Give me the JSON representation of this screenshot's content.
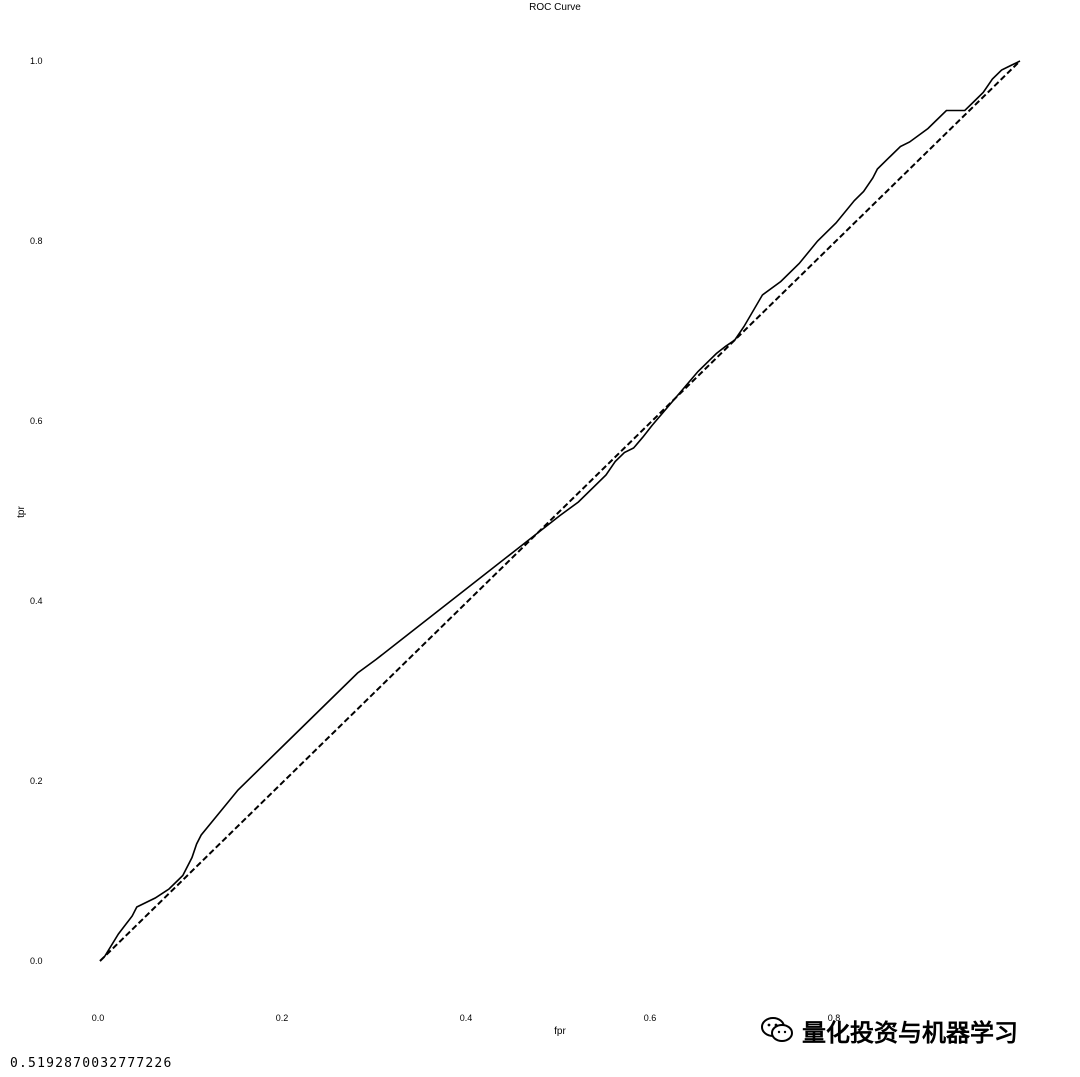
{
  "chart_data": {
    "type": "line",
    "title": "ROC Curve",
    "xlabel": "fpr",
    "ylabel": "tpr",
    "xlim": [
      0.0,
      1.0
    ],
    "ylim": [
      0.0,
      1.0
    ],
    "x_ticks": [
      "0.0",
      "0.2",
      "0.4",
      "0.6",
      "0.8"
    ],
    "y_ticks": [
      "0.0",
      "0.2",
      "0.4",
      "0.6",
      "0.8",
      "1.0"
    ],
    "grid": false,
    "series": [
      {
        "style": "solid",
        "x": [
          0.0,
          0.005,
          0.02,
          0.035,
          0.04,
          0.05,
          0.06,
          0.075,
          0.085,
          0.09,
          0.1,
          0.105,
          0.11,
          0.15,
          0.2,
          0.25,
          0.28,
          0.3,
          0.35,
          0.4,
          0.45,
          0.5,
          0.52,
          0.55,
          0.56,
          0.57,
          0.58,
          0.59,
          0.6,
          0.65,
          0.67,
          0.68,
          0.69,
          0.7,
          0.72,
          0.74,
          0.76,
          0.78,
          0.8,
          0.82,
          0.83,
          0.84,
          0.845,
          0.86,
          0.87,
          0.88,
          0.9,
          0.91,
          0.92,
          0.94,
          0.95,
          0.96,
          0.97,
          0.98,
          0.99,
          1.0
        ],
        "y": [
          0.0,
          0.005,
          0.03,
          0.05,
          0.06,
          0.065,
          0.07,
          0.08,
          0.09,
          0.095,
          0.115,
          0.13,
          0.14,
          0.19,
          0.24,
          0.29,
          0.32,
          0.335,
          0.375,
          0.415,
          0.455,
          0.495,
          0.51,
          0.54,
          0.555,
          0.565,
          0.57,
          0.582,
          0.595,
          0.655,
          0.675,
          0.683,
          0.69,
          0.705,
          0.74,
          0.755,
          0.775,
          0.8,
          0.82,
          0.845,
          0.855,
          0.87,
          0.88,
          0.895,
          0.905,
          0.91,
          0.925,
          0.935,
          0.945,
          0.945,
          0.955,
          0.965,
          0.98,
          0.99,
          0.995,
          1.0
        ]
      },
      {
        "style": "dashed",
        "x": [
          0.0,
          1.0
        ],
        "y": [
          0.0,
          1.0
        ]
      }
    ]
  },
  "output": {
    "auc_value": "0.5192870032777226"
  },
  "watermark": {
    "text": "量化投资与机器学习"
  }
}
